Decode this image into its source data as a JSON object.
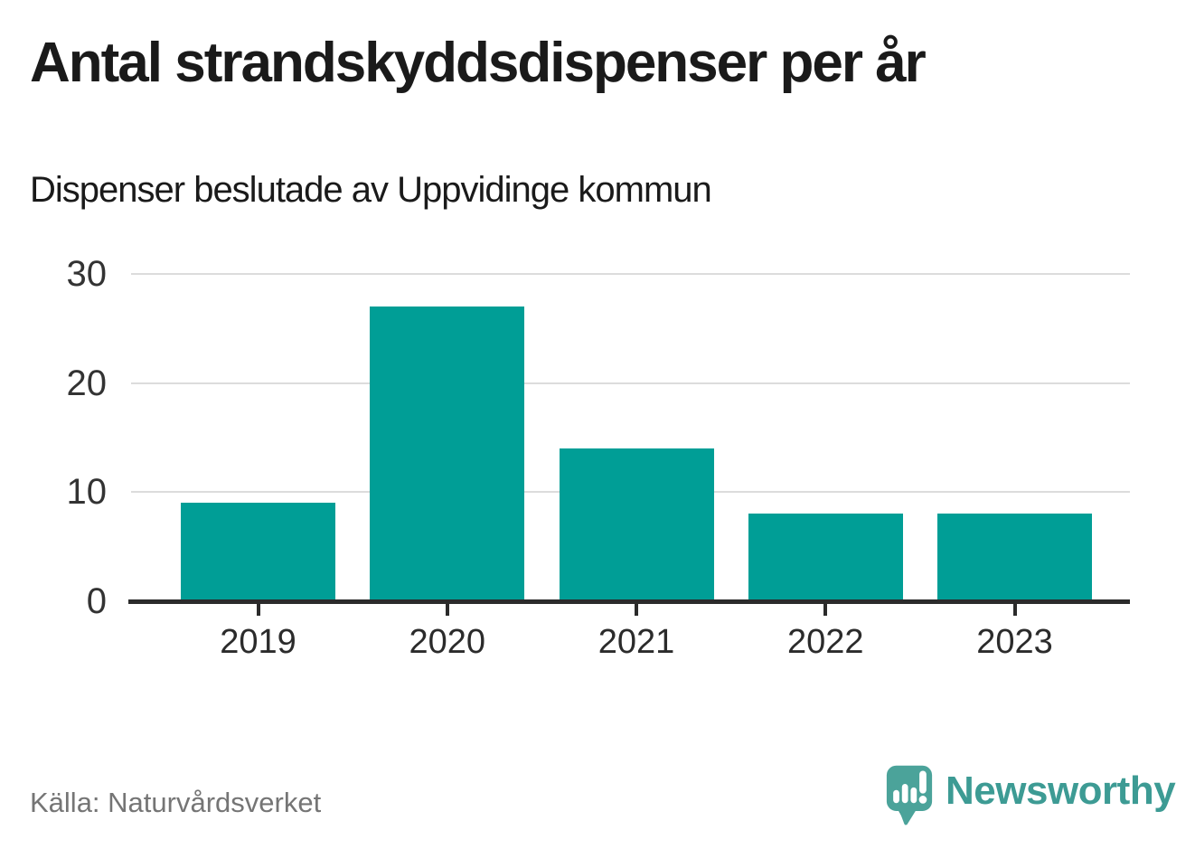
{
  "header": {
    "title": "Antal strandskyddsdispenser per år",
    "subtitle": "Dispenser beslutade av Uppvidinge kommun"
  },
  "footer": {
    "source": "Källa: Naturvårdsverket",
    "brand": "Newsworthy"
  },
  "colors": {
    "bar": "#009e96",
    "grid": "#dcdcdc",
    "axis": "#2b2b2b",
    "title_text": "#1a1a1a",
    "subtitle_text": "#1a1a1a",
    "tick_text": "#333333",
    "source_text": "#757575",
    "brand_teal": "#3d9b94",
    "logo_bubble": "#4ba39a",
    "logo_glyphs": "#ffffff"
  },
  "chart_data": {
    "type": "bar",
    "categories": [
      "2019",
      "2020",
      "2021",
      "2022",
      "2023"
    ],
    "values": [
      9,
      27,
      14,
      8,
      8
    ],
    "title": "Antal strandskyddsdispenser per år",
    "subtitle": "Dispenser beslutade av Uppvidinge kommun",
    "source": "Källa: Naturvårdsverket",
    "xlabel": "",
    "ylabel": "",
    "yticks": [
      0,
      10,
      20,
      30
    ],
    "ylim": [
      0,
      30
    ],
    "grid": true,
    "legend_position": "none"
  }
}
